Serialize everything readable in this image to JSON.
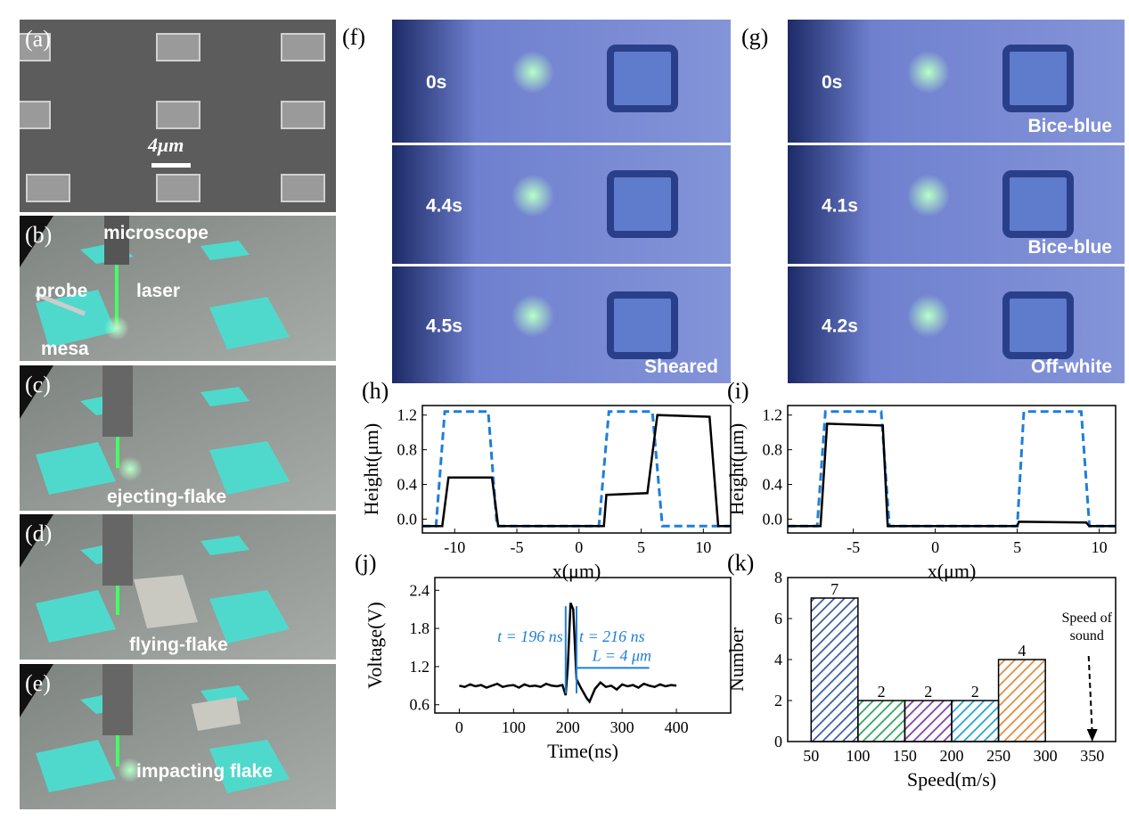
{
  "panels": {
    "a": {
      "label": "(a)",
      "scale_bar": "4μm"
    },
    "b": {
      "label": "(b)",
      "texts": [
        "microscope",
        "probe",
        "laser",
        "mesa"
      ]
    },
    "c": {
      "label": "(c)",
      "texts": [
        "ejecting-flake"
      ]
    },
    "d": {
      "label": "(d)",
      "texts": [
        "flying-flake"
      ]
    },
    "e": {
      "label": "(e)",
      "texts": [
        "impacting flake"
      ]
    },
    "f": {
      "label": "(f)",
      "frames": [
        {
          "time": "0s"
        },
        {
          "time": "4.4s"
        },
        {
          "time": "4.5s",
          "state": "Sheared"
        }
      ]
    },
    "g": {
      "label": "(g)",
      "frames": [
        {
          "time": "0s",
          "state": "Bice-blue"
        },
        {
          "time": "4.1s",
          "state": "Bice-blue"
        },
        {
          "time": "4.2s",
          "state": "Off-white"
        }
      ]
    }
  },
  "chart_data": [
    {
      "type": "line",
      "panel_label": "(h)",
      "x_label": "x(μm)",
      "y_label": "Height(μm)",
      "xlim": [
        -12.6,
        12.2
      ],
      "ylim": [
        -0.16,
        1.31
      ],
      "xticks": [
        -10,
        -5,
        0,
        5,
        10
      ],
      "yticks": [
        {
          "value": 0,
          "label": "0.0"
        },
        0.4,
        0.8,
        1.2
      ],
      "series": [
        {
          "color": "#1f7fd6",
          "dash": true,
          "x": [
            -12.6,
            -11.5,
            -10.8,
            -7.3,
            -6.6,
            1.6,
            2.4,
            5.9,
            6.7,
            12.2
          ],
          "values": [
            -0.08,
            -0.08,
            1.24,
            1.24,
            -0.08,
            -0.08,
            1.24,
            1.24,
            -0.08,
            -0.08
          ]
        },
        {
          "color": "#000000",
          "dash": false,
          "x": [
            -12.6,
            -11,
            -10.5,
            -7,
            -6.5,
            2,
            2.2,
            5.5,
            6.3,
            10.5,
            11.2,
            12.2
          ],
          "values": [
            -0.08,
            -0.08,
            0.48,
            0.48,
            -0.08,
            -0.08,
            0.28,
            0.3,
            1.2,
            1.18,
            -0.08,
            -0.08
          ]
        }
      ]
    },
    {
      "type": "line",
      "panel_label": "(i)",
      "x_label": "x(μm)",
      "y_label": "Height(μm)",
      "xlim": [
        -9,
        11
      ],
      "ylim": [
        -0.16,
        1.31
      ],
      "xticks": [
        -5,
        0,
        5,
        10
      ],
      "yticks": [
        {
          "value": 0,
          "label": "0.0"
        },
        0.4,
        0.8,
        1.2
      ],
      "series": [
        {
          "color": "#1f7fd6",
          "dash": true,
          "x": [
            -9,
            -7.2,
            -6.7,
            -3.3,
            -2.8,
            5,
            5.4,
            8.9,
            9.4,
            11
          ],
          "values": [
            -0.08,
            -0.08,
            1.24,
            1.24,
            -0.08,
            -0.08,
            1.24,
            1.24,
            -0.08,
            -0.08
          ]
        },
        {
          "color": "#000000",
          "dash": false,
          "x": [
            -9,
            -7,
            -6.6,
            -3.2,
            -2.9,
            5,
            5.1,
            9.2,
            9.4,
            11
          ],
          "values": [
            -0.08,
            -0.08,
            1.1,
            1.08,
            -0.08,
            -0.08,
            -0.03,
            -0.04,
            -0.08,
            -0.08
          ]
        }
      ]
    },
    {
      "type": "line",
      "panel_label": "(j)",
      "x_label": "Time(ns)",
      "y_label": "Voltage(V)",
      "xlim": [
        -45,
        500
      ],
      "ylim": [
        0.47,
        2.6
      ],
      "xticks": [
        0,
        100,
        200,
        300,
        400
      ],
      "yticks": [
        0.6,
        1.2,
        1.8,
        2.4
      ],
      "series": [
        {
          "color": "#000000",
          "dash": false,
          "x": [
            0,
            10,
            20,
            30,
            40,
            50,
            60,
            70,
            80,
            90,
            100,
            110,
            120,
            130,
            140,
            150,
            160,
            170,
            180,
            190,
            196,
            200,
            205,
            210,
            216,
            225,
            235,
            240,
            250,
            260,
            270,
            280,
            290,
            300,
            310,
            320,
            330,
            340,
            350,
            360,
            370,
            380,
            390,
            400
          ],
          "values": [
            0.9,
            0.88,
            0.92,
            0.89,
            0.91,
            0.87,
            0.9,
            0.93,
            0.88,
            0.9,
            0.91,
            0.87,
            0.92,
            0.89,
            0.9,
            0.88,
            0.93,
            0.9,
            0.89,
            0.91,
            0.75,
            1.2,
            2.2,
            2.1,
            1.0,
            0.85,
            0.7,
            0.65,
            0.85,
            0.95,
            0.88,
            0.9,
            0.84,
            0.92,
            0.89,
            0.91,
            0.87,
            0.93,
            0.9,
            0.88,
            0.92,
            0.89,
            0.91,
            0.9
          ]
        }
      ],
      "annotations": [
        {
          "text": "t = 196 ns",
          "x": 196,
          "color": "#1f7fd6"
        },
        {
          "text": "t = 216 ns",
          "x": 216,
          "color": "#1f7fd6"
        },
        {
          "text": "L = 4 μm",
          "x": [
            216,
            350
          ],
          "y": 1.18,
          "color": "#1f7fd6"
        }
      ]
    },
    {
      "type": "histogram",
      "panel_label": "(k)",
      "x_label": "Speed(m/s)",
      "y_label": "Number",
      "xlim": [
        25,
        375
      ],
      "ylim": [
        0,
        8
      ],
      "xticks": [
        50,
        100,
        150,
        200,
        250,
        300,
        350
      ],
      "yticks": [
        0,
        2,
        4,
        6,
        8
      ],
      "bins": [
        50,
        100,
        150,
        200,
        250,
        300
      ],
      "values": [
        7,
        2,
        2,
        2,
        4
      ],
      "colors": [
        "#3b5ba5",
        "#2ca25f",
        "#7b3fa0",
        "#1ba3d8",
        "#e08a3c"
      ],
      "annotations": [
        {
          "lines": [
            "Speed of",
            "sound"
          ],
          "x": 350
        }
      ]
    }
  ]
}
